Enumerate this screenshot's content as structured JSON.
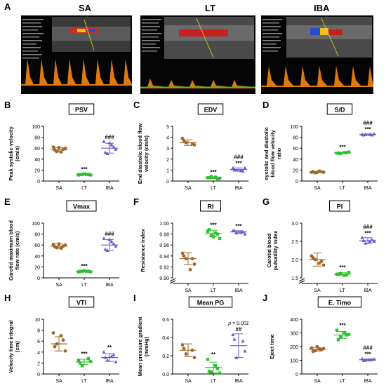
{
  "panel_A": {
    "letter": "A",
    "groups": [
      "SA",
      "LT",
      "IBA"
    ]
  },
  "colors": {
    "SA": "#a0672a",
    "LT": "#2dc02d",
    "IBA": "#6a5acd",
    "doppler_orange": "#e07a10",
    "flow_red": "#d02020",
    "flow_blue": "#2a4cd0"
  },
  "chart_data": [
    {
      "id": "B",
      "type": "scatter",
      "title": "PSV",
      "ylabel": "Peak systolic velocity (cm/s)",
      "categories": [
        "SA",
        "LT",
        "IBA"
      ],
      "ylim": [
        0,
        100
      ],
      "yticks": [
        0,
        20,
        40,
        60,
        80,
        100
      ],
      "series": [
        {
          "name": "SA",
          "points": [
            62,
            58,
            54,
            60,
            57,
            53,
            61
          ],
          "mean": 57,
          "sd": 4,
          "marker": "circle"
        },
        {
          "name": "LT",
          "points": [
            11,
            12,
            12,
            11,
            12,
            12,
            13
          ],
          "mean": 12,
          "sd": 1,
          "marker": "square"
        },
        {
          "name": "IBA",
          "points": [
            72,
            62,
            50,
            58,
            52,
            66,
            70
          ],
          "mean": 60,
          "sd": 9,
          "marker": "triangle"
        }
      ],
      "annotations": [
        {
          "category": "LT",
          "lines": [
            "***"
          ]
        },
        {
          "category": "IBA",
          "lines": [
            "###"
          ]
        }
      ]
    },
    {
      "id": "C",
      "type": "scatter",
      "title": "EDV",
      "ylabel": "End diastolic blood flow velocity (cm/s)",
      "categories": [
        "SA",
        "LT",
        "IBA"
      ],
      "ylim": [
        0,
        5
      ],
      "yticks": [
        0,
        1,
        2,
        3,
        4,
        5
      ],
      "series": [
        {
          "name": "SA",
          "points": [
            3.9,
            3.4,
            3.5,
            3.3,
            3.7
          ],
          "mean": 3.5,
          "sd": 0.25,
          "marker": "circle"
        },
        {
          "name": "LT",
          "points": [
            0.3,
            0.2,
            0.4,
            0.25,
            0.3,
            0.35
          ],
          "mean": 0.3,
          "sd": 0.08,
          "marker": "square"
        },
        {
          "name": "IBA",
          "points": [
            1.2,
            0.9,
            1.0,
            1.2,
            1.0,
            0.95
          ],
          "mean": 1.05,
          "sd": 0.15,
          "marker": "triangle"
        }
      ],
      "annotations": [
        {
          "category": "LT",
          "lines": [
            "***"
          ]
        },
        {
          "category": "IBA",
          "lines": [
            "###",
            "***"
          ]
        }
      ]
    },
    {
      "id": "D",
      "type": "scatter",
      "title": "S/D",
      "ylabel": "systolic and diastolic blood flow velocity ratio",
      "categories": [
        "SA",
        "LT",
        "IBA"
      ],
      "ylim": [
        0,
        100
      ],
      "yticks": [
        0,
        20,
        40,
        60,
        80,
        100
      ],
      "series": [
        {
          "name": "SA",
          "points": [
            16,
            17,
            15,
            16,
            17,
            18,
            16
          ],
          "mean": 16.5,
          "sd": 1,
          "marker": "circle"
        },
        {
          "name": "LT",
          "points": [
            51,
            52,
            50,
            53,
            51,
            52
          ],
          "mean": 51.5,
          "sd": 1.2,
          "marker": "square"
        },
        {
          "name": "IBA",
          "points": [
            85,
            84,
            85,
            86,
            84,
            85
          ],
          "mean": 85,
          "sd": 0.8,
          "marker": "triangle"
        }
      ],
      "annotations": [
        {
          "category": "LT",
          "lines": [
            "***"
          ]
        },
        {
          "category": "IBA",
          "lines": [
            "###",
            "***"
          ]
        }
      ]
    },
    {
      "id": "E",
      "type": "scatter",
      "title": "Vmax",
      "ylabel": "Carotid maximum blood flow rate (cm/s)",
      "categories": [
        "SA",
        "LT",
        "IBA"
      ],
      "ylim": [
        0,
        100
      ],
      "yticks": [
        0,
        20,
        40,
        60,
        80,
        100
      ],
      "series": [
        {
          "name": "SA",
          "points": [
            61,
            58,
            55,
            60,
            57,
            54,
            62
          ],
          "mean": 58,
          "sd": 4,
          "marker": "circle"
        },
        {
          "name": "LT",
          "points": [
            11,
            12,
            12,
            11,
            12,
            12,
            13
          ],
          "mean": 12,
          "sd": 1,
          "marker": "square"
        },
        {
          "name": "IBA",
          "points": [
            72,
            62,
            50,
            58,
            52,
            66,
            70
          ],
          "mean": 60,
          "sd": 10,
          "marker": "triangle"
        }
      ],
      "annotations": [
        {
          "category": "LT",
          "lines": [
            "***"
          ]
        },
        {
          "category": "IBA",
          "lines": [
            "###"
          ]
        }
      ]
    },
    {
      "id": "F",
      "type": "scatter",
      "title": "RI",
      "ylabel": "Resistance index",
      "categories": [
        "SA",
        "LT",
        "IBA"
      ],
      "ylim": [
        0.9,
        1.0
      ],
      "yticks": [
        0.9,
        0.92,
        0.94,
        0.96,
        0.98,
        1.0
      ],
      "axis_break": true,
      "series": [
        {
          "name": "SA",
          "points": [
            0.945,
            0.935,
            0.935,
            0.925,
            0.94,
            0.915
          ],
          "mean": 0.935,
          "sd": 0.011,
          "marker": "circle"
        },
        {
          "name": "LT",
          "points": [
            0.985,
            0.98,
            0.977,
            0.972,
            0.988,
            0.982,
            0.975
          ],
          "mean": 0.981,
          "sd": 0.006,
          "marker": "square"
        },
        {
          "name": "IBA",
          "points": [
            0.986,
            0.984,
            0.982,
            0.98,
            0.986,
            0.983
          ],
          "mean": 0.984,
          "sd": 0.002,
          "marker": "triangle"
        }
      ],
      "annotations": [
        {
          "category": "LT",
          "lines": [
            "***"
          ]
        },
        {
          "category": "IBA",
          "lines": [
            "***"
          ]
        }
      ]
    },
    {
      "id": "G",
      "type": "scatter",
      "title": "PI",
      "ylabel": "Carotid blood pulsatility index",
      "categories": [
        "SA",
        "LT",
        "IBA"
      ],
      "ylim": [
        0,
        3.0
      ],
      "yticks": [
        1.5,
        2.0,
        2.5,
        3.0
      ],
      "axis_break": true,
      "series": [
        {
          "name": "SA",
          "points": [
            2.1,
            1.95,
            2.0,
            1.85,
            2.05,
            1.9
          ],
          "mean": 2.0,
          "sd": 0.18,
          "marker": "circle"
        },
        {
          "name": "LT",
          "points": [
            1.6,
            1.58,
            1.62,
            1.65,
            1.6,
            1.57
          ],
          "mean": 1.6,
          "sd": 0.04,
          "marker": "square"
        },
        {
          "name": "IBA",
          "points": [
            2.6,
            2.55,
            2.45,
            2.5,
            2.52,
            2.5
          ],
          "mean": 2.52,
          "sd": 0.08,
          "marker": "triangle"
        }
      ],
      "annotations": [
        {
          "category": "LT",
          "lines": [
            "***"
          ]
        },
        {
          "category": "IBA",
          "lines": [
            "###",
            "***"
          ]
        }
      ]
    },
    {
      "id": "H",
      "type": "scatter",
      "title": "VTI",
      "ylabel": "Velocity time integral (cm)",
      "categories": [
        "SA",
        "LT",
        "IBA"
      ],
      "ylim": [
        0,
        10
      ],
      "yticks": [
        0,
        2,
        4,
        6,
        8,
        10
      ],
      "series": [
        {
          "name": "SA",
          "points": [
            7.5,
            6.2,
            5.5,
            4.2,
            5.0,
            7.0
          ],
          "mean": 5.5,
          "sd": 1.3,
          "marker": "circle"
        },
        {
          "name": "LT",
          "points": [
            2.5,
            2.8,
            1.5,
            2.3,
            2.0
          ],
          "mean": 2.2,
          "sd": 0.5,
          "marker": "square"
        },
        {
          "name": "IBA",
          "points": [
            4.0,
            3.5,
            2.5,
            2.2,
            3.0,
            3.2
          ],
          "mean": 3.0,
          "sd": 0.7,
          "marker": "triangle"
        }
      ],
      "annotations": [
        {
          "category": "LT",
          "lines": [
            "***"
          ]
        },
        {
          "category": "IBA",
          "lines": [
            "**"
          ]
        }
      ]
    },
    {
      "id": "I",
      "type": "scatter",
      "title": "Mean PG",
      "ylabel": "Mean pressure gradient (mmHg)",
      "categories": [
        "SA",
        "LT",
        "IBA"
      ],
      "ylim": [
        0,
        0.6
      ],
      "yticks": [
        0.0,
        0.2,
        0.4,
        0.6
      ],
      "series": [
        {
          "name": "SA",
          "points": [
            0.32,
            0.26,
            0.22,
            0.18,
            0.28
          ],
          "mean": 0.26,
          "sd": 0.07,
          "marker": "circle"
        },
        {
          "name": "LT",
          "points": [
            0.16,
            0.06,
            0.02,
            0.01,
            0.03,
            0.09
          ],
          "mean": 0.07,
          "sd": 0.06,
          "marker": "square"
        },
        {
          "name": "IBA",
          "points": [
            0.43,
            0.36,
            0.18,
            0.25,
            0.38
          ],
          "mean": 0.31,
          "sd": 0.13,
          "marker": "triangle"
        }
      ],
      "annotations": [
        {
          "category": "LT",
          "lines": [
            "**"
          ]
        },
        {
          "category": "IBA",
          "lines": [
            "p = 0.001",
            "##"
          ]
        }
      ]
    },
    {
      "id": "J",
      "type": "scatter",
      "title": "E. Timo",
      "ylabel": "Eject time",
      "categories": [
        "SA",
        "LT",
        "IBA"
      ],
      "ylim": [
        0,
        400
      ],
      "yticks": [
        0,
        100,
        200,
        300,
        400
      ],
      "series": [
        {
          "name": "SA",
          "points": [
            190,
            178,
            170,
            185,
            165,
            182,
            200
          ],
          "mean": 180,
          "sd": 13,
          "marker": "circle"
        },
        {
          "name": "LT",
          "points": [
            320,
            285,
            270,
            290,
            250,
            300
          ],
          "mean": 285,
          "sd": 25,
          "marker": "square"
        },
        {
          "name": "IBA",
          "points": [
            110,
            105,
            100,
            108,
            98,
            102
          ],
          "mean": 104,
          "sd": 5,
          "marker": "triangle"
        }
      ],
      "annotations": [
        {
          "category": "LT",
          "lines": [
            "***"
          ]
        },
        {
          "category": "IBA",
          "lines": [
            "###",
            "***"
          ]
        }
      ]
    }
  ]
}
